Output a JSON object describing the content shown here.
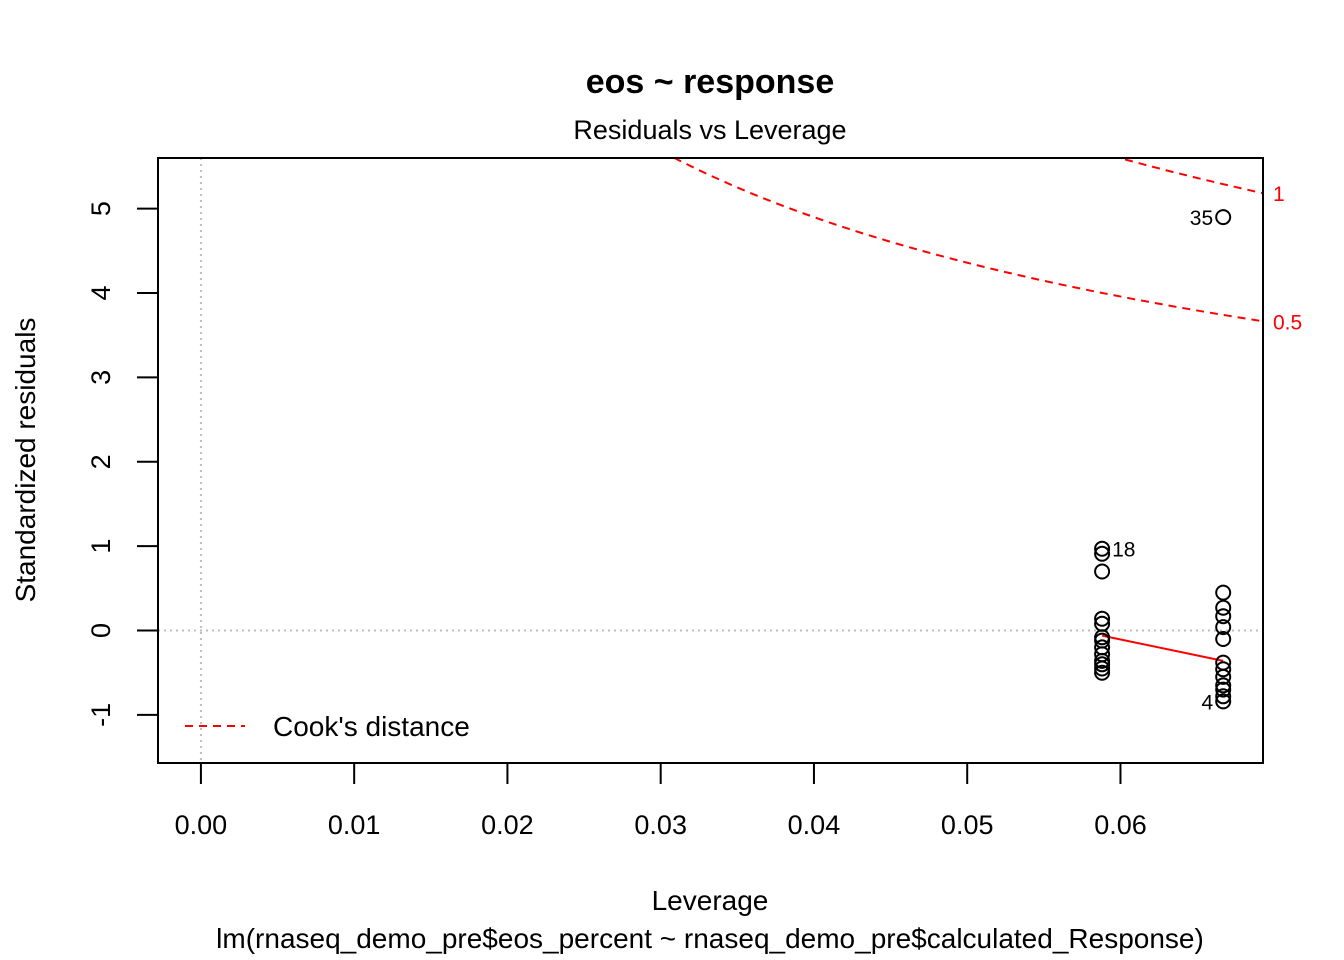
{
  "chart_data": {
    "type": "scatter",
    "title": "eos ~ response",
    "subtitle": "Residuals vs Leverage",
    "xlabel": "Leverage",
    "caption": "lm(rnaseq_demo_pre$eos_percent ~ rnaseq_demo_pre$calculated_Response)",
    "ylabel": "Standardized residuals",
    "xlim": [
      -0.0028,
      0.0693
    ],
    "ylim": [
      -1.57,
      5.6
    ],
    "x_ticks": [
      0.0,
      0.01,
      0.02,
      0.03,
      0.04,
      0.05,
      0.06
    ],
    "x_tick_labels": [
      "0.00",
      "0.01",
      "0.02",
      "0.03",
      "0.04",
      "0.05",
      "0.06"
    ],
    "y_ticks": [
      -1,
      0,
      1,
      2,
      3,
      4,
      5
    ],
    "y_tick_labels": [
      "-1",
      "0",
      "1",
      "2",
      "3",
      "4",
      "5"
    ],
    "reference_lines": {
      "h": 0,
      "v": 0
    },
    "series": [
      {
        "points": [
          {
            "x": 0.0588,
            "y": 0.97
          },
          {
            "x": 0.0588,
            "y": 0.91
          },
          {
            "x": 0.0588,
            "y": 0.7
          },
          {
            "x": 0.0588,
            "y": 0.14
          },
          {
            "x": 0.0588,
            "y": 0.08
          },
          {
            "x": 0.0588,
            "y": -0.08
          },
          {
            "x": 0.0588,
            "y": -0.12
          },
          {
            "x": 0.0588,
            "y": -0.2
          },
          {
            "x": 0.0588,
            "y": -0.28
          },
          {
            "x": 0.0588,
            "y": -0.36
          },
          {
            "x": 0.0588,
            "y": -0.4
          },
          {
            "x": 0.0588,
            "y": -0.45
          },
          {
            "x": 0.0588,
            "y": -0.5
          },
          {
            "x": 0.0667,
            "y": 4.9
          },
          {
            "x": 0.0667,
            "y": 0.45
          },
          {
            "x": 0.0667,
            "y": 0.27
          },
          {
            "x": 0.0667,
            "y": 0.17
          },
          {
            "x": 0.0667,
            "y": 0.04
          },
          {
            "x": 0.0667,
            "y": -0.1
          },
          {
            "x": 0.0667,
            "y": -0.38
          },
          {
            "x": 0.0667,
            "y": -0.46
          },
          {
            "x": 0.0667,
            "y": -0.55
          },
          {
            "x": 0.0667,
            "y": -0.65
          },
          {
            "x": 0.0667,
            "y": -0.7
          },
          {
            "x": 0.0667,
            "y": -0.78
          },
          {
            "x": 0.0667,
            "y": -0.84
          }
        ]
      }
    ],
    "point_labels": [
      {
        "text": "35",
        "x": 0.0667,
        "y": 4.9,
        "side": "left"
      },
      {
        "text": "18",
        "x": 0.0588,
        "y": 0.97,
        "side": "right"
      },
      {
        "text": "4",
        "x": 0.0667,
        "y": -0.84,
        "side": "left"
      }
    ],
    "smooth_line": {
      "color": "#ff0000",
      "points": [
        {
          "x": 0.0588,
          "y": -0.06
        },
        {
          "x": 0.0667,
          "y": -0.36
        }
      ]
    },
    "cooks_distance": {
      "color": "#ff0000",
      "levels": [
        0.5,
        1
      ],
      "level_labels": [
        "0.5",
        "1"
      ],
      "p": 2
    },
    "legend": {
      "position": "bottom-left",
      "entries": [
        "Cook's distance"
      ],
      "line_style": "dashed",
      "color": "#ff0000"
    },
    "grid": false
  }
}
